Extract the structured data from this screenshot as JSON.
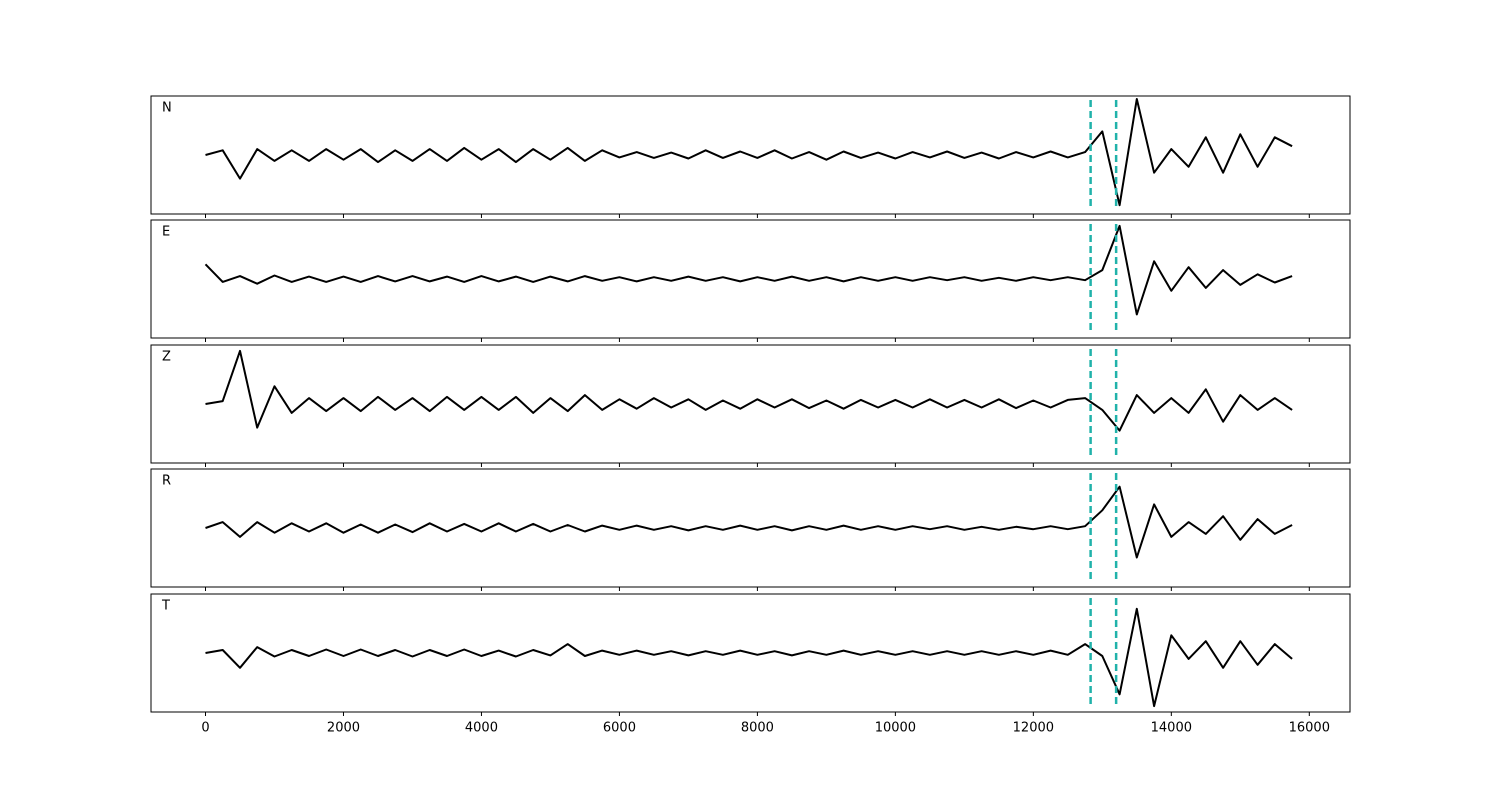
{
  "chart_data": {
    "type": "line",
    "x": [
      0,
      250,
      500,
      750,
      1000,
      1250,
      1500,
      1750,
      2000,
      2250,
      2500,
      2750,
      3000,
      3250,
      3500,
      3750,
      4000,
      4250,
      4500,
      4750,
      5000,
      5250,
      5500,
      5750,
      6000,
      6250,
      6500,
      6750,
      7000,
      7250,
      7500,
      7750,
      8000,
      8250,
      8500,
      8750,
      9000,
      9250,
      9500,
      9750,
      10000,
      10250,
      10500,
      10750,
      11000,
      11250,
      11500,
      11750,
      12000,
      12250,
      12500,
      12750,
      13000,
      13250,
      13500,
      13750,
      14000,
      14250,
      14500,
      14750,
      15000,
      15250,
      15500,
      15750
    ],
    "xlim": [
      -790,
      16590
    ],
    "xticks": [
      0,
      2000,
      4000,
      6000,
      8000,
      10000,
      12000,
      14000,
      16000
    ],
    "ylim": [
      -1,
      1
    ],
    "vlines": [
      12830,
      13200
    ],
    "vline_color": "#20b2aa",
    "series": [
      {
        "name": "N",
        "color": "#000000",
        "values": [
          0.0,
          0.08,
          -0.4,
          0.1,
          -0.1,
          0.08,
          -0.1,
          0.1,
          -0.08,
          0.1,
          -0.12,
          0.08,
          -0.1,
          0.1,
          -0.1,
          0.12,
          -0.08,
          0.1,
          -0.12,
          0.1,
          -0.08,
          0.12,
          -0.1,
          0.08,
          -0.04,
          0.05,
          -0.05,
          0.04,
          -0.06,
          0.08,
          -0.05,
          0.06,
          -0.05,
          0.08,
          -0.06,
          0.05,
          -0.08,
          0.06,
          -0.05,
          0.04,
          -0.06,
          0.05,
          -0.04,
          0.06,
          -0.05,
          0.04,
          -0.06,
          0.05,
          -0.04,
          0.06,
          -0.04,
          0.05,
          0.4,
          -0.85,
          0.95,
          -0.3,
          0.1,
          -0.2,
          0.3,
          -0.3,
          0.35,
          -0.2,
          0.3,
          0.15
        ]
      },
      {
        "name": "E",
        "color": "#000000",
        "values": [
          0.25,
          -0.05,
          0.05,
          -0.08,
          0.06,
          -0.05,
          0.04,
          -0.05,
          0.04,
          -0.05,
          0.05,
          -0.04,
          0.05,
          -0.04,
          0.04,
          -0.05,
          0.05,
          -0.04,
          0.04,
          -0.05,
          0.04,
          -0.04,
          0.05,
          -0.03,
          0.03,
          -0.04,
          0.03,
          -0.03,
          0.04,
          -0.03,
          0.03,
          -0.04,
          0.03,
          -0.03,
          0.04,
          -0.03,
          0.03,
          -0.04,
          0.03,
          -0.03,
          0.03,
          -0.03,
          0.03,
          -0.02,
          0.03,
          -0.03,
          0.02,
          -0.03,
          0.03,
          -0.02,
          0.03,
          -0.02,
          0.15,
          0.9,
          -0.6,
          0.3,
          -0.2,
          0.2,
          -0.15,
          0.15,
          -0.1,
          0.08,
          -0.06,
          0.05
        ]
      },
      {
        "name": "Z",
        "color": "#000000",
        "values": [
          0.0,
          0.05,
          0.9,
          -0.4,
          0.3,
          -0.15,
          0.1,
          -0.12,
          0.1,
          -0.12,
          0.12,
          -0.1,
          0.1,
          -0.12,
          0.12,
          -0.1,
          0.12,
          -0.1,
          0.12,
          -0.15,
          0.1,
          -0.12,
          0.15,
          -0.1,
          0.08,
          -0.08,
          0.1,
          -0.06,
          0.08,
          -0.1,
          0.06,
          -0.08,
          0.08,
          -0.06,
          0.08,
          -0.07,
          0.06,
          -0.08,
          0.07,
          -0.06,
          0.07,
          -0.06,
          0.08,
          -0.06,
          0.07,
          -0.06,
          0.08,
          -0.07,
          0.06,
          -0.06,
          0.07,
          0.1,
          -0.1,
          -0.45,
          0.15,
          -0.15,
          0.1,
          -0.15,
          0.25,
          -0.3,
          0.15,
          -0.1,
          0.1,
          -0.1
        ]
      },
      {
        "name": "R",
        "color": "#000000",
        "values": [
          0.0,
          0.1,
          -0.15,
          0.1,
          -0.08,
          0.08,
          -0.06,
          0.08,
          -0.08,
          0.06,
          -0.08,
          0.06,
          -0.07,
          0.08,
          -0.06,
          0.07,
          -0.06,
          0.08,
          -0.06,
          0.07,
          -0.06,
          0.05,
          -0.06,
          0.04,
          -0.03,
          0.04,
          -0.03,
          0.03,
          -0.04,
          0.03,
          -0.03,
          0.04,
          -0.03,
          0.03,
          -0.04,
          0.03,
          -0.03,
          0.04,
          -0.03,
          0.03,
          -0.03,
          0.03,
          -0.02,
          0.03,
          -0.03,
          0.02,
          -0.03,
          0.02,
          -0.02,
          0.03,
          -0.02,
          0.03,
          0.3,
          0.7,
          -0.5,
          0.4,
          -0.15,
          0.1,
          -0.1,
          0.2,
          -0.2,
          0.15,
          -0.1,
          0.05
        ]
      },
      {
        "name": "T",
        "color": "#000000",
        "values": [
          0.0,
          0.05,
          -0.25,
          0.1,
          -0.06,
          0.05,
          -0.05,
          0.06,
          -0.05,
          0.06,
          -0.05,
          0.05,
          -0.06,
          0.05,
          -0.05,
          0.06,
          -0.05,
          0.04,
          -0.06,
          0.05,
          -0.04,
          0.15,
          -0.05,
          0.04,
          -0.03,
          0.04,
          -0.03,
          0.03,
          -0.04,
          0.03,
          -0.03,
          0.04,
          -0.03,
          0.03,
          -0.04,
          0.03,
          -0.03,
          0.04,
          -0.03,
          0.03,
          -0.03,
          0.03,
          -0.03,
          0.03,
          -0.03,
          0.03,
          -0.03,
          0.03,
          -0.03,
          0.04,
          -0.03,
          0.15,
          -0.05,
          -0.7,
          0.75,
          -0.9,
          0.3,
          -0.1,
          0.2,
          -0.25,
          0.2,
          -0.2,
          0.15,
          -0.1
        ]
      }
    ]
  }
}
